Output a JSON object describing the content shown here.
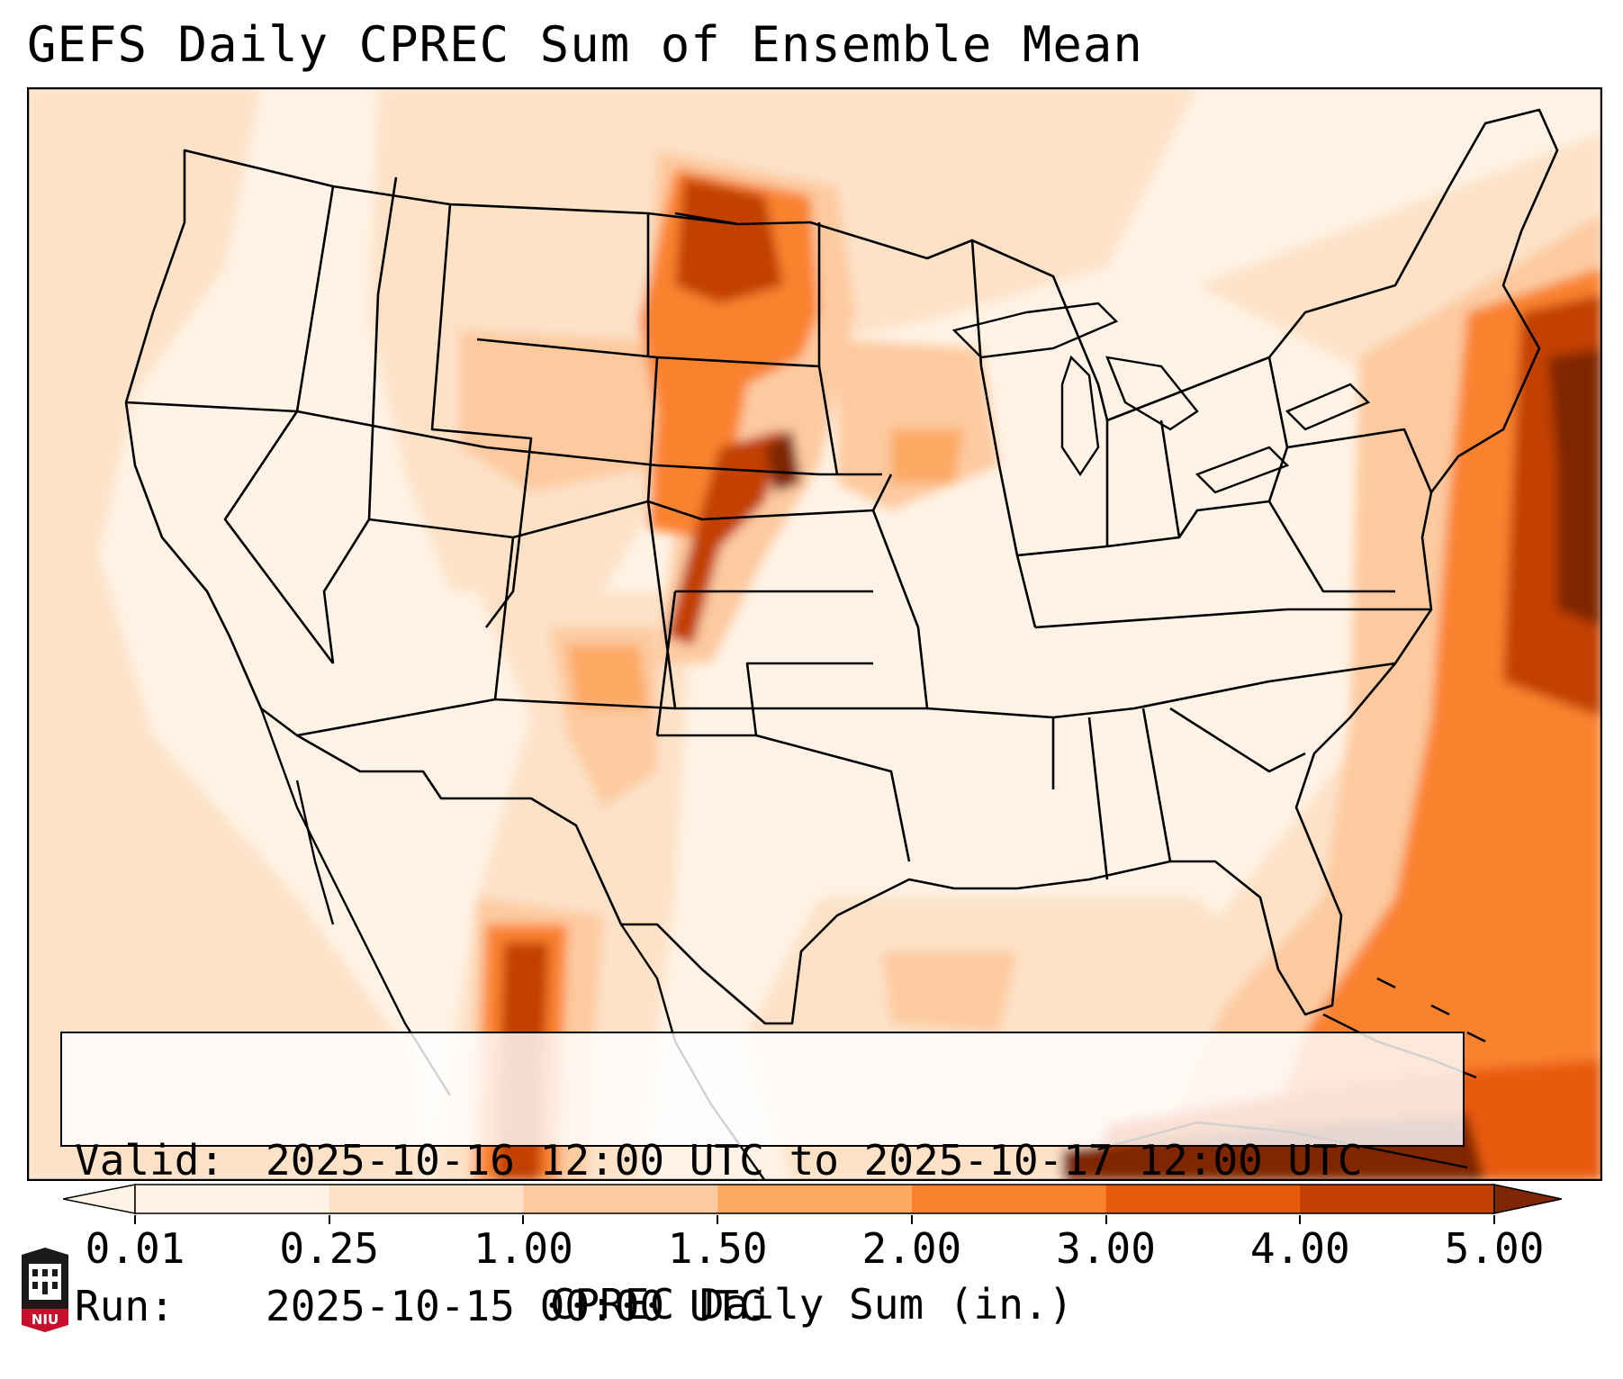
{
  "title": "GEFS Daily CPREC Sum of Ensemble Mean",
  "info": {
    "valid_label": "Valid:",
    "valid_value": "2025-10-16 12:00 UTC to 2025-10-17 12:00 UTC",
    "run_label": "Run:",
    "run_value": "2025-10-15 00:00 UTC"
  },
  "colorbar": {
    "title": "CPREC Daily Sum (in.)",
    "tick_labels": [
      "0.01",
      "0.25",
      "1.00",
      "1.50",
      "2.00",
      "3.00",
      "4.00",
      "5.00"
    ],
    "colors": [
      "#fff3e6",
      "#fde2c8",
      "#fdcaa0",
      "#fca964",
      "#f9822e",
      "#e85a0e",
      "#c23f03",
      "#7f2704"
    ]
  },
  "logo": {
    "text": "NIU",
    "color": "#c8102e"
  },
  "colors": {
    "land": "#ffffff",
    "border": "#000000"
  }
}
